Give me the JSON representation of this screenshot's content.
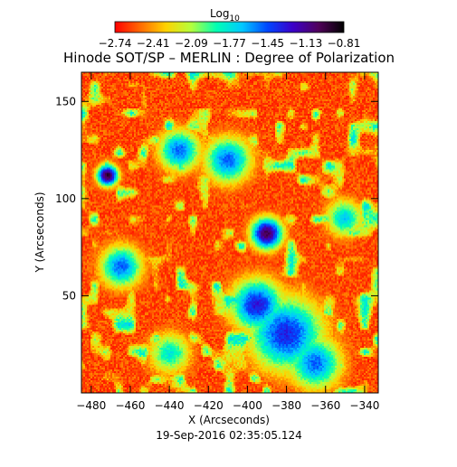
{
  "figure": {
    "title": "Hinode SOT/SP – MERLIN : Degree of Polarization",
    "date_text": "19-Sep-2016 02:35:05.124"
  },
  "colorbar": {
    "label_main": "Log",
    "label_sub": "10",
    "tick_labels": [
      "-2.74",
      "-2.41",
      "-2.09",
      "-1.77",
      "-1.45",
      "-1.13",
      "-0.81"
    ],
    "colors": [
      "#ff0000",
      "#ff6a00",
      "#ffd200",
      "#b4ff3c",
      "#00ffb4",
      "#00c8ff",
      "#0046ff",
      "#3c00c8",
      "#50005a",
      "#000000"
    ]
  },
  "chart_data": {
    "type": "heatmap",
    "title": "Hinode SOT/SP – MERLIN : Degree of Polarization",
    "xlabel": "X (Arcseconds)",
    "ylabel": "Y (Arcseconds)",
    "xlim": [
      -485,
      -333
    ],
    "ylim": [
      0,
      165
    ],
    "x_ticks": [
      -480,
      -460,
      -440,
      -420,
      -400,
      -380,
      -360,
      -340
    ],
    "y_ticks": [
      50,
      100,
      150
    ],
    "color_scale": "log10",
    "value_range": [
      -2.74,
      -0.81
    ],
    "grid": false,
    "features": [
      {
        "x": -472,
        "y": 112,
        "level": -0.9,
        "radius": 4
      },
      {
        "x": -390,
        "y": 82,
        "level": -1.0,
        "radius": 6
      },
      {
        "x": -395,
        "y": 45,
        "level": -1.3,
        "radius": 10
      },
      {
        "x": -380,
        "y": 30,
        "level": -1.35,
        "radius": 14
      },
      {
        "x": -435,
        "y": 125,
        "level": -1.5,
        "radius": 8
      },
      {
        "x": -410,
        "y": 120,
        "level": -1.5,
        "radius": 9
      },
      {
        "x": -465,
        "y": 65,
        "level": -1.5,
        "radius": 8
      },
      {
        "x": -365,
        "y": 15,
        "level": -1.5,
        "radius": 10
      },
      {
        "x": -350,
        "y": 90,
        "level": -1.7,
        "radius": 7
      },
      {
        "x": -440,
        "y": 20,
        "level": -1.8,
        "radius": 8
      }
    ]
  }
}
